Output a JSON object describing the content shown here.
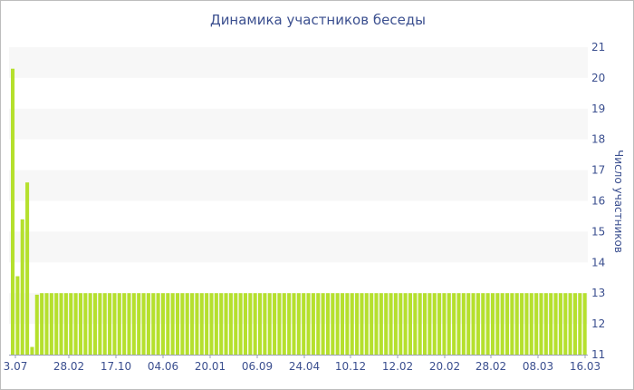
{
  "chart_data": {
    "type": "bar",
    "title": "Динамика участников беседы",
    "xlabel": "",
    "ylabel": "Число участников",
    "ylim": [
      11,
      21
    ],
    "y_ticks": [
      11,
      12,
      13,
      14,
      15,
      16,
      17,
      18,
      19,
      20,
      21
    ],
    "x_tick_labels": [
      "3.07",
      "28.02",
      "17.10",
      "04.06",
      "20.01",
      "06.09",
      "24.04",
      "10.12",
      "12.02",
      "20.02",
      "28.02",
      "08.03",
      "16.03"
    ],
    "bar_color": "#b5e02d",
    "band_color": "#f7f7f7",
    "values": [
      20.3,
      13.55,
      15.4,
      16.6,
      11.25,
      12.95,
      13,
      13,
      13,
      13,
      13,
      13,
      13,
      13,
      13,
      13,
      13,
      13,
      13,
      13,
      13,
      13,
      13,
      13,
      13,
      13,
      13,
      13,
      13,
      13,
      13,
      13,
      13,
      13,
      13,
      13,
      13,
      13,
      13,
      13,
      13,
      13,
      13,
      13,
      13,
      13,
      13,
      13,
      13,
      13,
      13,
      13,
      13,
      13,
      13,
      13,
      13,
      13,
      13,
      13,
      13,
      13,
      13,
      13,
      13,
      13,
      13,
      13,
      13,
      13,
      13,
      13,
      13,
      13,
      13,
      13,
      13,
      13,
      13,
      13,
      13,
      13,
      13,
      13,
      13,
      13,
      13,
      13,
      13,
      13,
      13,
      13,
      13,
      13,
      13,
      13,
      13,
      13,
      13,
      13,
      13,
      13,
      13,
      13,
      13,
      13,
      13,
      13,
      13,
      13,
      13,
      13,
      13,
      13,
      13,
      13,
      13,
      13,
      13
    ]
  }
}
